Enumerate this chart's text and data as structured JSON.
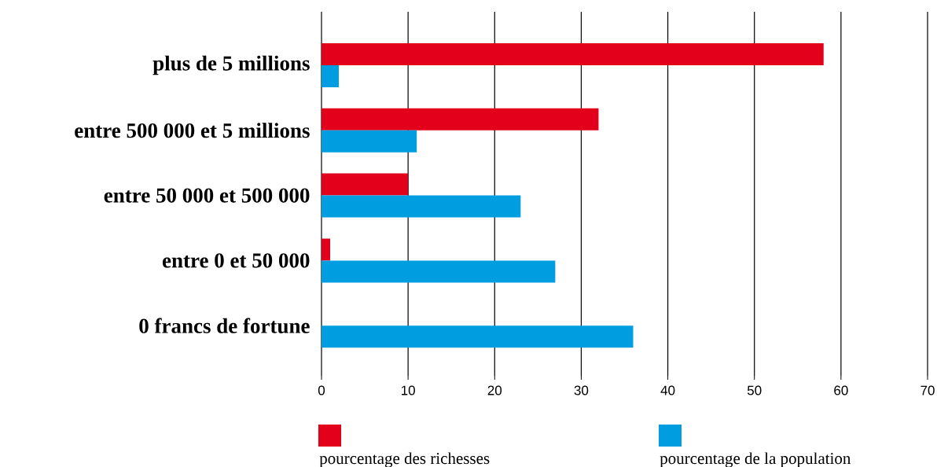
{
  "chart_data": {
    "type": "bar",
    "orientation": "horizontal",
    "categories": [
      "plus de 5 millions",
      "entre 500 000 et 5 millions",
      "entre 50 000 et 500 000",
      "entre 0 et 50 000",
      "0 francs de fortune"
    ],
    "series": [
      {
        "name": "pourcentage des richesses",
        "color": "#e2001a",
        "values": [
          58,
          32,
          10,
          1,
          0
        ]
      },
      {
        "name": "pourcentage de la population",
        "color": "#009ee0",
        "values": [
          2,
          11,
          23,
          27,
          36
        ]
      }
    ],
    "xlim": [
      0,
      70
    ],
    "xticks": [
      0,
      10,
      20,
      30,
      40,
      50,
      60,
      70
    ],
    "grid": "x",
    "legend": "bottom"
  }
}
